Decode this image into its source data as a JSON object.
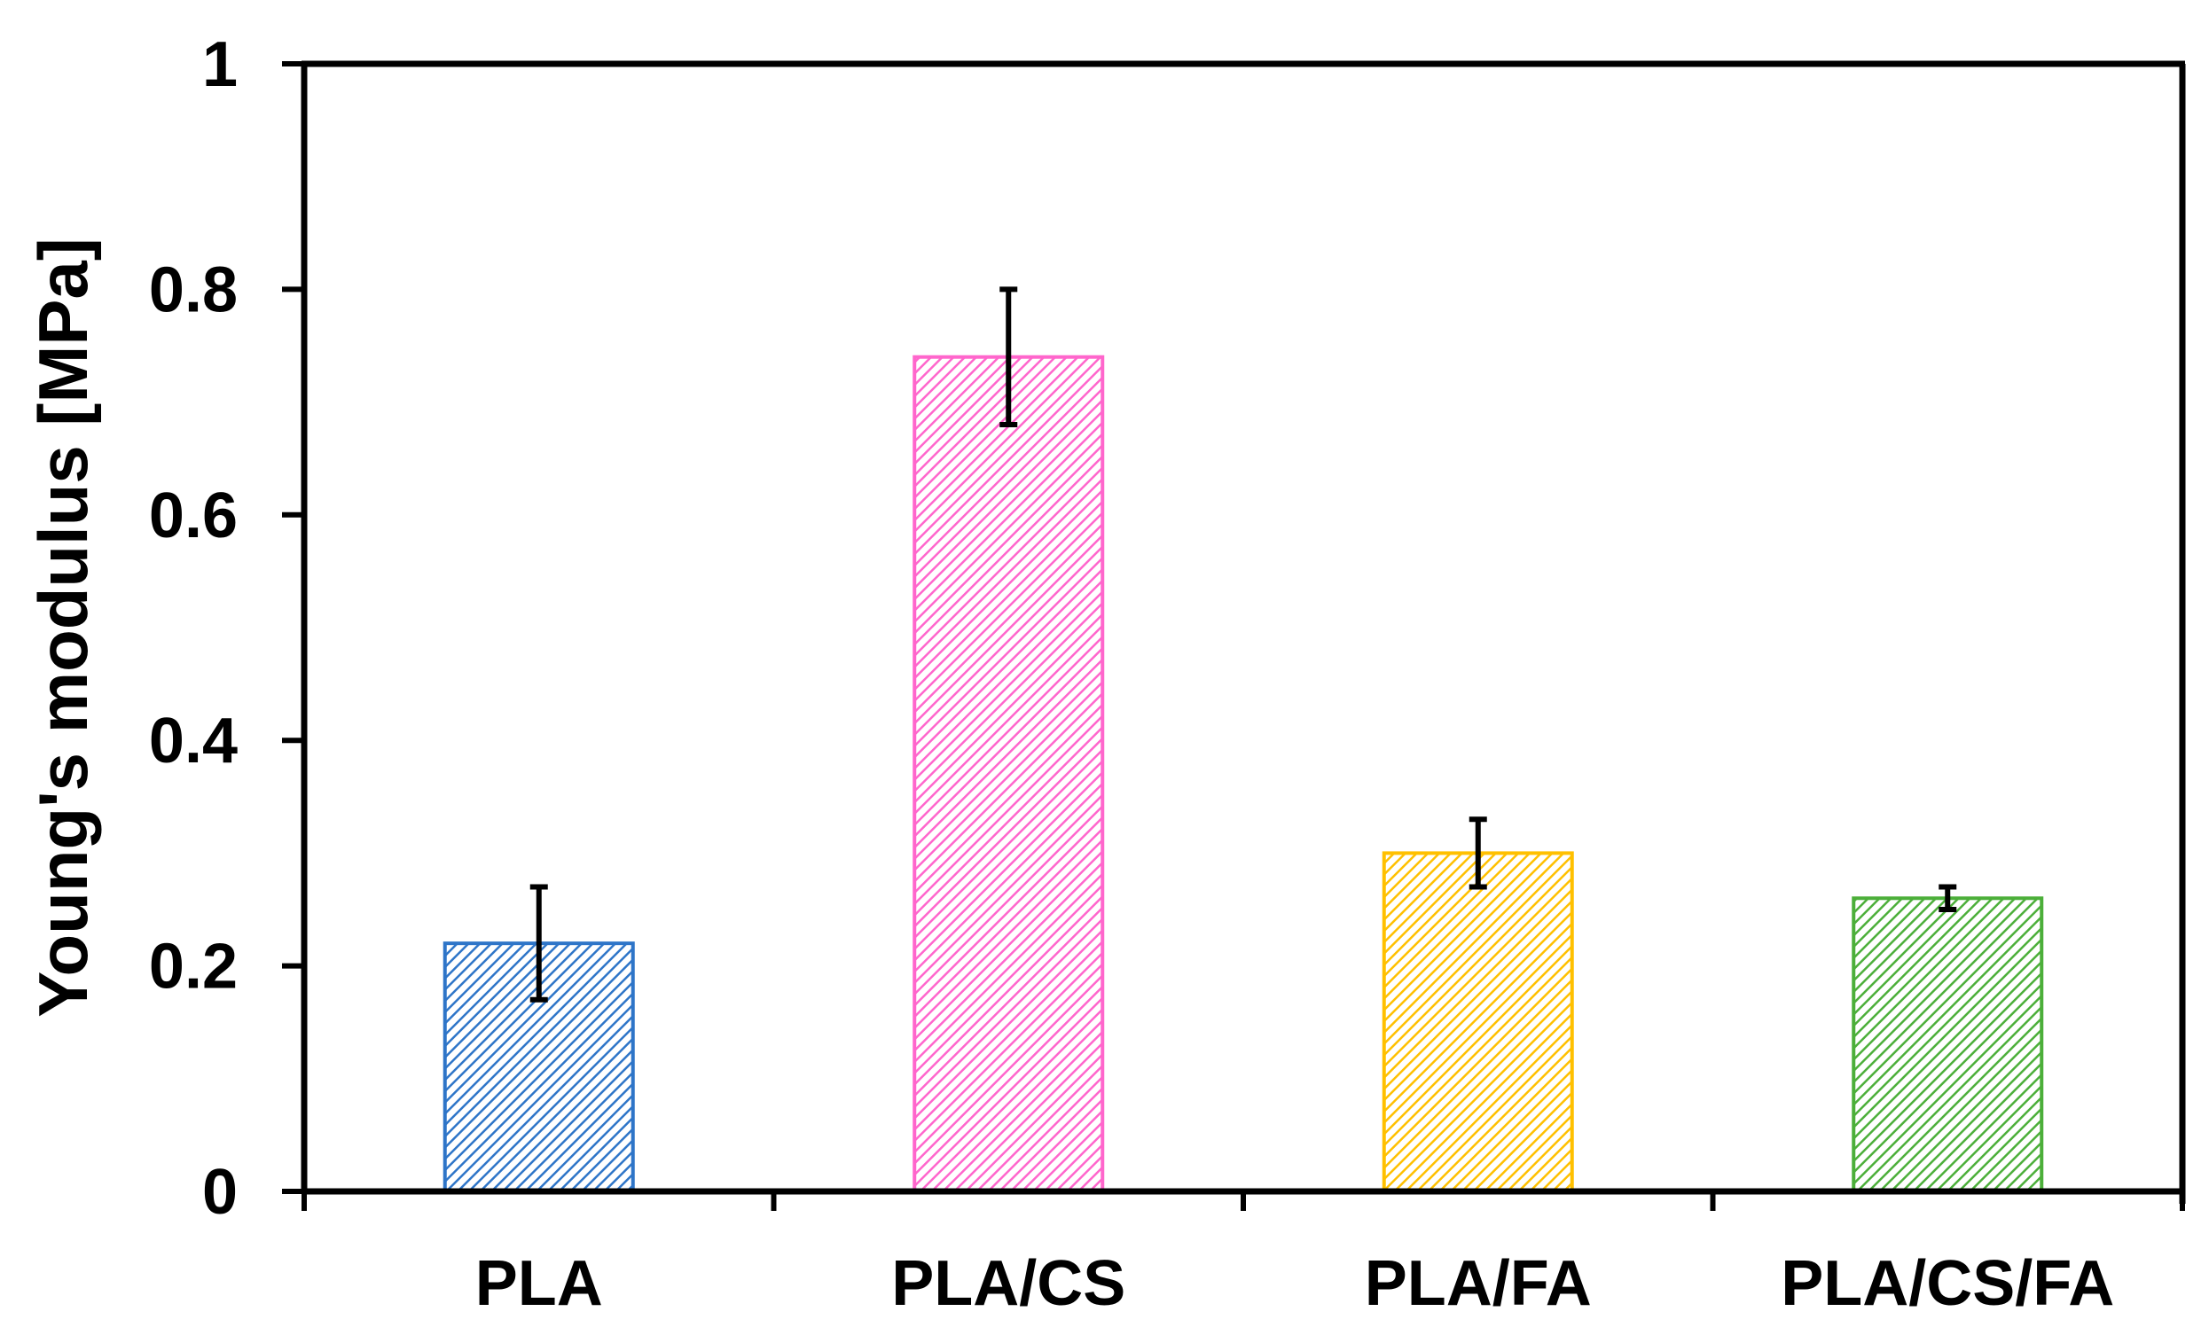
{
  "chart_data": {
    "type": "bar",
    "title": "",
    "xlabel": "",
    "ylabel": "Young's modulus [MPa]",
    "ylim": [
      0,
      1
    ],
    "yticks": [
      "0",
      "0.2",
      "0.4",
      "0.6",
      "0.8",
      "1"
    ],
    "categories": [
      "PLA",
      "PLA/CS",
      "PLA/FA",
      "PLA/CS/FA"
    ],
    "values": [
      0.22,
      0.74,
      0.3,
      0.26
    ],
    "errors": [
      0.05,
      0.06,
      0.03,
      0.01
    ],
    "colors": [
      "#2e75c8",
      "#ff66cc",
      "#ffc000",
      "#4caf3a"
    ],
    "fill_pattern": "diagonal-hatch",
    "grid": false,
    "legend": "none"
  }
}
